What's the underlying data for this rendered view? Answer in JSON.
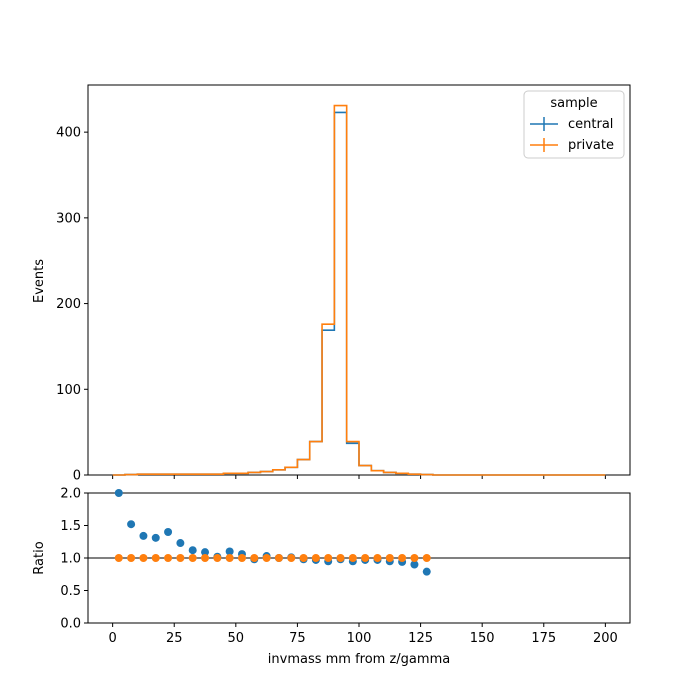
{
  "chart_data": {
    "type": "step-histogram-with-ratio",
    "main_panel": {
      "ylabel": "Events",
      "ylim": [
        0,
        455
      ],
      "yticks": [
        0,
        100,
        200,
        300,
        400
      ],
      "xlim": [
        -10,
        210
      ],
      "bin_edges": [
        0,
        5,
        10,
        15,
        20,
        25,
        30,
        35,
        40,
        45,
        50,
        55,
        60,
        65,
        70,
        75,
        80,
        85,
        90,
        95,
        100,
        105,
        110,
        115,
        120,
        125,
        130,
        135,
        140,
        145,
        150,
        155,
        160,
        165,
        170,
        175,
        180,
        185,
        190,
        195,
        200
      ],
      "series": [
        {
          "name": "central",
          "color": "#1f77b4",
          "values": [
            0,
            0.5,
            1,
            1,
            1,
            1,
            1,
            1,
            1,
            2,
            2,
            3,
            4,
            6,
            9,
            18,
            39,
            169,
            423,
            37,
            11,
            5,
            3,
            2,
            1,
            0.5,
            0,
            0,
            0,
            0,
            0,
            0,
            0,
            0,
            0,
            0,
            0,
            0,
            0,
            0
          ]
        },
        {
          "name": "private",
          "color": "#ff7f0e",
          "values": [
            0,
            0.5,
            1,
            1,
            1,
            1,
            1,
            1,
            1,
            2,
            2,
            3,
            4,
            6,
            9,
            18,
            39,
            176,
            431,
            39,
            11,
            5,
            3,
            2,
            1,
            0.5,
            0,
            0,
            0,
            0,
            0,
            0,
            0,
            0,
            0,
            0,
            0,
            0,
            0,
            0
          ]
        }
      ]
    },
    "legend": {
      "title": "sample",
      "position": "top-right",
      "entries": [
        "central",
        "private"
      ]
    },
    "ratio_panel": {
      "ylabel": "Ratio",
      "ylim": [
        0,
        2
      ],
      "yticks": [
        "0.0",
        "0.5",
        "1.0",
        "1.5",
        "2.0"
      ],
      "reference_line": 1.0,
      "x": [
        2.5,
        7.5,
        12.5,
        17.5,
        22.5,
        27.5,
        32.5,
        37.5,
        42.5,
        47.5,
        52.5,
        57.5,
        62.5,
        67.5,
        72.5,
        77.5,
        82.5,
        87.5,
        92.5,
        97.5,
        102.5,
        107.5,
        112.5,
        117.5,
        122.5,
        127.5
      ],
      "series": [
        {
          "name": "central",
          "color": "#1f77b4",
          "values": [
            2.0,
            1.52,
            1.34,
            1.31,
            1.4,
            1.23,
            1.12,
            1.09,
            1.02,
            1.1,
            1.06,
            0.98,
            1.03,
            1.0,
            1.01,
            0.98,
            0.97,
            0.95,
            0.98,
            0.95,
            0.97,
            0.97,
            0.95,
            0.94,
            0.9,
            0.79
          ]
        },
        {
          "name": "private",
          "color": "#ff7f0e",
          "values": [
            1,
            1,
            1,
            1,
            1,
            1,
            1,
            1,
            1,
            1,
            1,
            1,
            1,
            1,
            1,
            1,
            1,
            1,
            1,
            1,
            1,
            1,
            1,
            1,
            1,
            1
          ]
        }
      ]
    },
    "xlabel": "invmass mm from z/gamma",
    "xticks": [
      0,
      25,
      50,
      75,
      100,
      125,
      150,
      175,
      200
    ]
  }
}
